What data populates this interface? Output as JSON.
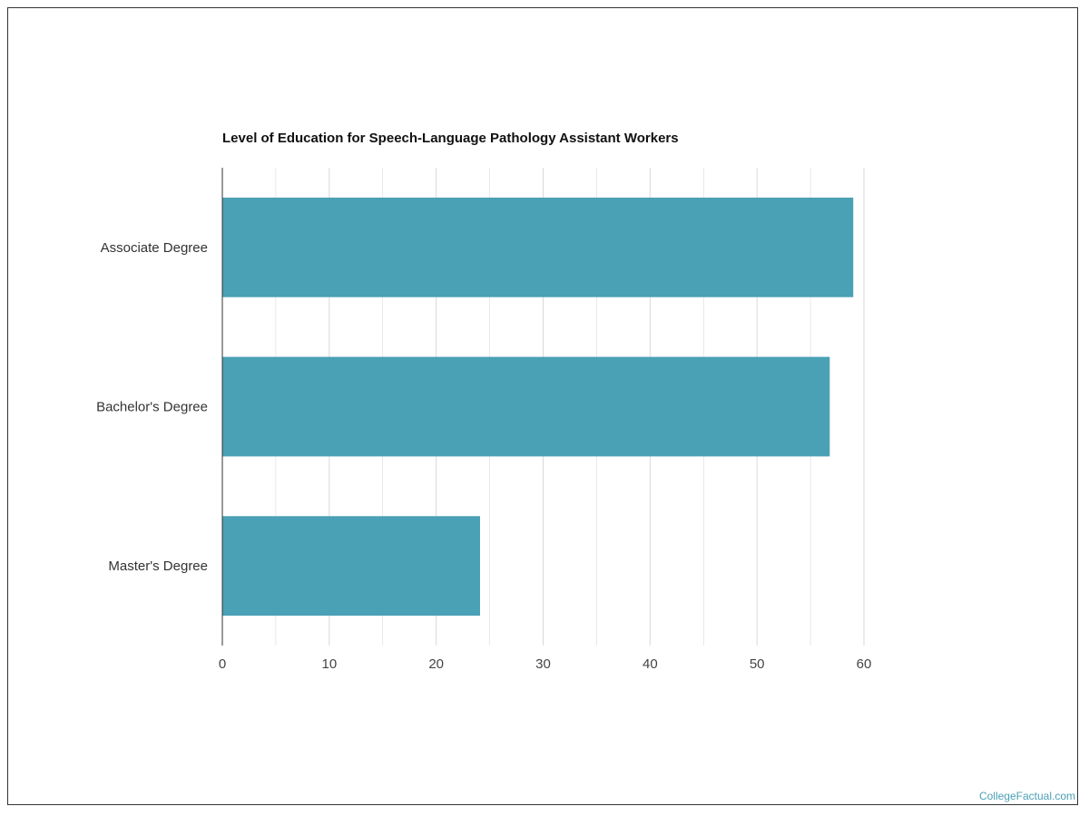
{
  "chart_data": {
    "type": "bar",
    "orientation": "horizontal",
    "title": "Level of Education for Speech-Language Pathology Assistant Workers",
    "categories": [
      "Associate Degree",
      "Bachelor's Degree",
      "Master's Degree"
    ],
    "values": [
      59.0,
      56.8,
      24.1
    ],
    "xlim": [
      0,
      60
    ],
    "ticks": [
      0,
      10,
      20,
      30,
      40,
      50,
      60
    ],
    "minor_grid_step": 5,
    "grid": true,
    "bar_color": "#4aa0b5",
    "grid_color": "#d9d9d9"
  },
  "source_label": "CollegeFactual.com"
}
